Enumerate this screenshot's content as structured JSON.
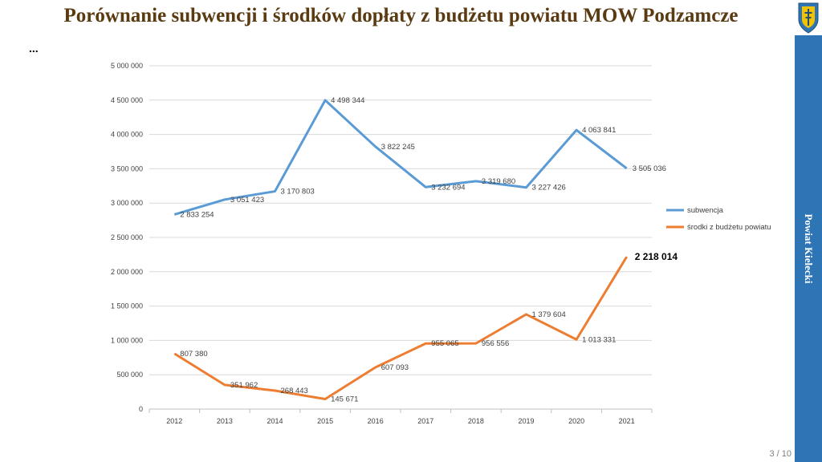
{
  "slide": {
    "title": "Porównanie subwencji i środków dopłaty z budżetu powiatu MOW Podzamcze",
    "ellipsis": "...",
    "sidebar_text": "Powiat Kielecki",
    "page_number": "3 / 10",
    "crest_icon": "county-coat-of-arms-icon"
  },
  "colors": {
    "subwencja": "#5b9bd5",
    "srodki": "#ed7d31",
    "title": "#5a3a10",
    "sidebar": "#2e75b6"
  },
  "chart_data": {
    "type": "line",
    "categories": [
      "2012",
      "2013",
      "2014",
      "2015",
      "2016",
      "2017",
      "2018",
      "2019",
      "2020",
      "2021"
    ],
    "ylim": [
      0,
      5000000
    ],
    "y_ticks": [
      {
        "value": 0,
        "label": "0"
      },
      {
        "value": 500000,
        "label": "500 000"
      },
      {
        "value": 1000000,
        "label": "1 000 000"
      },
      {
        "value": 1500000,
        "label": "1 500 000"
      },
      {
        "value": 2000000,
        "label": "2 000 000"
      },
      {
        "value": 2500000,
        "label": "2 500 000"
      },
      {
        "value": 3000000,
        "label": "3 000 000"
      },
      {
        "value": 3500000,
        "label": "3 500 000"
      },
      {
        "value": 4000000,
        "label": "4 000 000"
      },
      {
        "value": 4500000,
        "label": "4 500 000"
      },
      {
        "value": 5000000,
        "label": "5 000 000"
      }
    ],
    "grid": true,
    "legend_position": "right",
    "series": [
      {
        "name": "subwencja",
        "color": "#5b9bd5",
        "values": [
          2833254,
          3051423,
          3170803,
          4498344,
          3822245,
          3232694,
          3319680,
          3227426,
          4063841,
          3505036
        ],
        "labels": [
          "2 833 254",
          "3 051 423",
          "3 170 803",
          "4 498 344",
          "3 822 245",
          "3 232 694",
          "3 319 680",
          "3 227 426",
          "4 063 841",
          "3 505 036"
        ]
      },
      {
        "name": "środki z budżetu powiatu",
        "color": "#ed7d31",
        "values": [
          807380,
          351962,
          268443,
          145671,
          607093,
          955065,
          956556,
          1379604,
          1013331,
          2218014
        ],
        "labels": [
          "807 380",
          "351 962",
          "268 443",
          "145 671",
          "607 093",
          "955 065",
          "956 556",
          "1 379 604",
          "1 013 331",
          "2 218 014"
        ]
      }
    ]
  }
}
